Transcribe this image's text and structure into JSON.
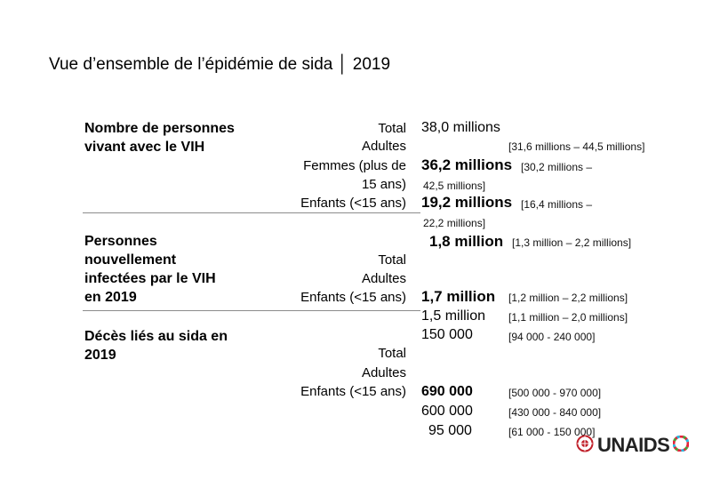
{
  "title": "Vue d’ensemble de l’épidémie de sida │ 2019",
  "sections": {
    "plhiv": {
      "heading": "Nombre de personnes vivant avec le VIH",
      "labels": {
        "total": "Total",
        "adults": "Adultes",
        "women": "Femmes (plus de",
        "women2": "15 ans)",
        "children": "Enfants (<15 ans)"
      },
      "total_value": "38,0 millions",
      "total_range": "[31,6 millions – 44,5 millions]",
      "adults_value": "36,2 millions",
      "adults_range_a": "[30,2 millions –",
      "adults_range_b": "42,5 millions]",
      "women_value": "19,2 millions",
      "women_range_a": "[16,4 millions –",
      "women_range_b": "22,2 millions]",
      "children_value": "1,8 million",
      "children_range": "[1,3 million – 2,2 millions]"
    },
    "new_infections": {
      "heading": "Personnes nouvellement infectées par le VIH en 2019",
      "labels": {
        "total": "Total",
        "adults": "Adultes",
        "children": "Enfants (<15 ans)"
      },
      "total_value": "1,7 million",
      "total_range": "[1,2 million – 2,2 millions]",
      "adults_value": "1,5 million",
      "adults_range": "[1,1 million – 2,0 millions]",
      "children_value": "150 000",
      "children_range": "[94 000 - 240 000]"
    },
    "deaths": {
      "heading": "Décès liés au sida en 2019",
      "labels": {
        "total": "Total",
        "adults": "Adultes",
        "children": "Enfants (<15 ans)"
      },
      "total_value": "690 000",
      "total_range": "[500 000 - 970 000]",
      "adults_value": "600 000",
      "adults_range": "[430 000 - 840 000]",
      "children_value": "95 000",
      "children_range": "[61 000 - 150 000]"
    }
  },
  "logo": {
    "text": "UNAIDS",
    "icon": "un-emblem-icon",
    "sdg_icon": "sdg-wheel-icon",
    "colors": {
      "emblem": "#c0202a",
      "text": "#222222"
    }
  }
}
